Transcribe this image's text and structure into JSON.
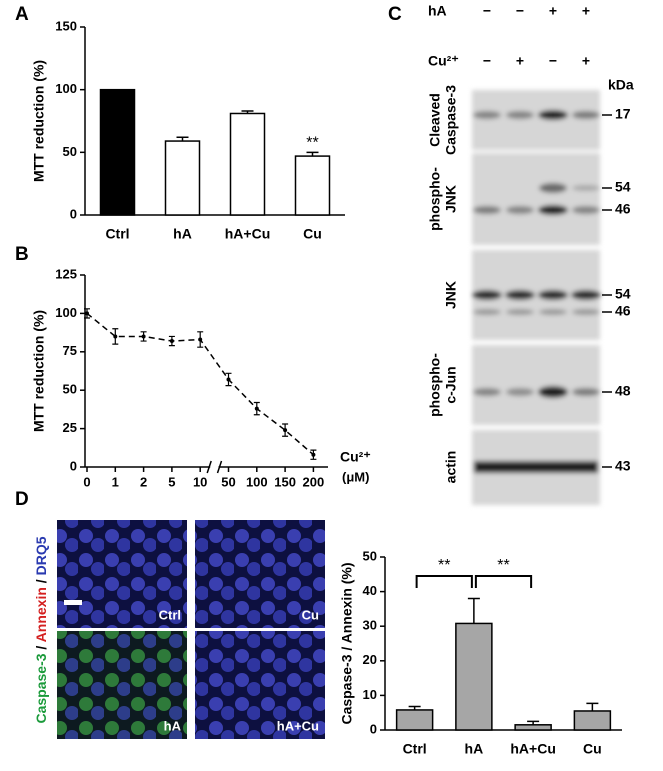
{
  "chart_data": [
    {
      "type": "bar",
      "panel": "A",
      "y_label": "MTT reduction (%)",
      "categories": [
        "Ctrl",
        "hA",
        "hA+Cu",
        "Cu"
      ],
      "values": [
        100,
        59,
        81,
        47
      ],
      "errors": [
        null,
        3,
        2,
        3
      ],
      "colors": [
        "#000000",
        "#ffffff",
        "#ffffff",
        "#ffffff"
      ],
      "ylim": [
        0,
        150
      ],
      "yticks": [
        0,
        50,
        100,
        150
      ],
      "annotations": [
        "**"
      ]
    },
    {
      "type": "line",
      "panel": "B",
      "y_label": "MTT reduction (%)",
      "x_label": "Cu²⁺",
      "x_unit": "(μM)",
      "categories": [
        "0",
        "1",
        "2",
        "5",
        "10",
        "50",
        "100",
        "150",
        "200"
      ],
      "values": [
        100,
        85,
        85,
        82,
        83,
        57,
        38,
        24,
        8
      ],
      "errors": [
        3,
        5,
        3,
        3,
        5,
        4,
        4,
        4,
        3
      ],
      "color": "#000000",
      "ylim": [
        0,
        125
      ],
      "yticks": [
        0,
        25,
        50,
        75,
        100,
        125
      ]
    },
    {
      "type": "bar",
      "panel": "",
      "y_label": "Caspase-3 / Annexin (%)",
      "categories": [
        "Ctrl",
        "hA",
        "hA+Cu",
        "Cu"
      ],
      "values": [
        5.8,
        30.8,
        1.5,
        5.5
      ],
      "errors": [
        1,
        7.2,
        1,
        2.2
      ],
      "colors": [
        "#a6a6a6",
        "#a6a6a6",
        "#a6a6a6",
        "#a6a6a6"
      ],
      "ylim": [
        0,
        50
      ],
      "yticks": [
        0,
        10,
        20,
        30,
        40,
        50
      ],
      "annotations": [
        "**",
        "**"
      ]
    }
  ],
  "blot": {
    "panel": "C",
    "treatments": [
      {
        "label": "hA",
        "signs": [
          "−",
          "−",
          "+",
          "+"
        ]
      },
      {
        "label": "Cu²⁺",
        "signs": [
          "−",
          "+",
          "−",
          "+"
        ]
      }
    ],
    "unit": "kDa",
    "rows": [
      {
        "label": [
          "Cleaved",
          "Caspase-3"
        ],
        "mw": [
          17
        ]
      },
      {
        "label": [
          "phospho-",
          "JNK"
        ],
        "mw": [
          54,
          46
        ]
      },
      {
        "label": [
          "JNK"
        ],
        "mw": [
          54,
          46
        ]
      },
      {
        "label": [
          "phospho-",
          "c-Jun"
        ],
        "mw": [
          48
        ]
      },
      {
        "label": [
          "actin"
        ],
        "mw": [
          43
        ]
      }
    ]
  },
  "micrographs": {
    "panel": "D",
    "stain": [
      "Caspase-3",
      " / ",
      "Annexin",
      " / ",
      "DRQ5"
    ],
    "panels": [
      "Ctrl",
      "Cu",
      "hA",
      "hA+Cu"
    ]
  }
}
